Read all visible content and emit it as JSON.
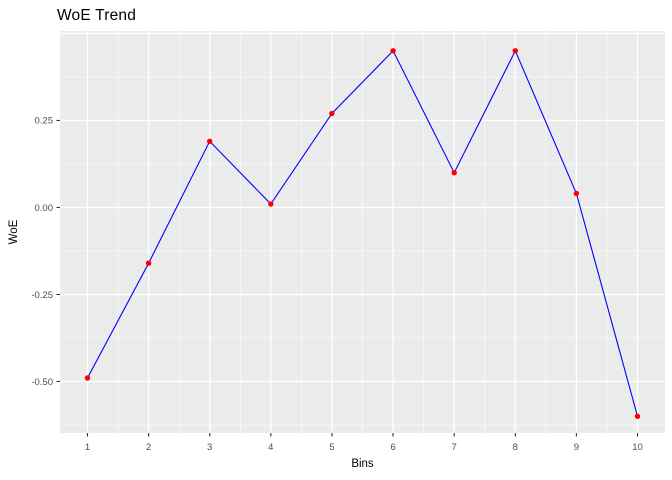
{
  "title": "WoE Trend",
  "chart_data": {
    "type": "line",
    "title": "WoE Trend",
    "xlabel": "Bins",
    "ylabel": "WoE",
    "x": [
      1,
      2,
      3,
      4,
      5,
      6,
      7,
      8,
      9,
      10
    ],
    "y": [
      -0.49,
      -0.16,
      0.19,
      0.01,
      0.27,
      0.45,
      0.1,
      0.45,
      0.04,
      -0.6
    ],
    "x_tick_labels": [
      "1",
      "2",
      "3",
      "4",
      "5",
      "6",
      "7",
      "8",
      "9",
      "10"
    ],
    "y_tick_labels": [
      "0.25",
      "0.00",
      "-0.25",
      "-0.50"
    ],
    "y_tick_values": [
      0.25,
      0,
      -0.25,
      -0.5
    ],
    "y_major_gridlines": [
      0.5,
      0.25,
      0,
      -0.25,
      -0.5
    ],
    "y_minor_gridlines": [
      0.375,
      0.125,
      -0.125,
      -0.375,
      -0.625
    ],
    "x_major_gridlines": [
      1,
      2,
      3,
      4,
      5,
      6,
      7,
      8,
      9,
      10
    ],
    "x_minor_gridlines": [
      1.5,
      2.5,
      3.5,
      4.5,
      5.5,
      6.5,
      7.5,
      8.5,
      9.5
    ],
    "xlim": [
      0.55,
      10.45
    ],
    "ylim": [
      -0.648,
      0.507
    ],
    "grid": true,
    "legend": "none",
    "style": {
      "line_color": "#0000FF",
      "point_color": "#FF0000",
      "panel_background": "#EBEBEB",
      "gridline_color": "#FFFFFF",
      "tick_mark_color": "#333333",
      "tick_label_color": "#4D4D4D",
      "axis_title_color": "#000000",
      "title_color": "#000000",
      "plot_background": "#FFFFFF"
    }
  }
}
